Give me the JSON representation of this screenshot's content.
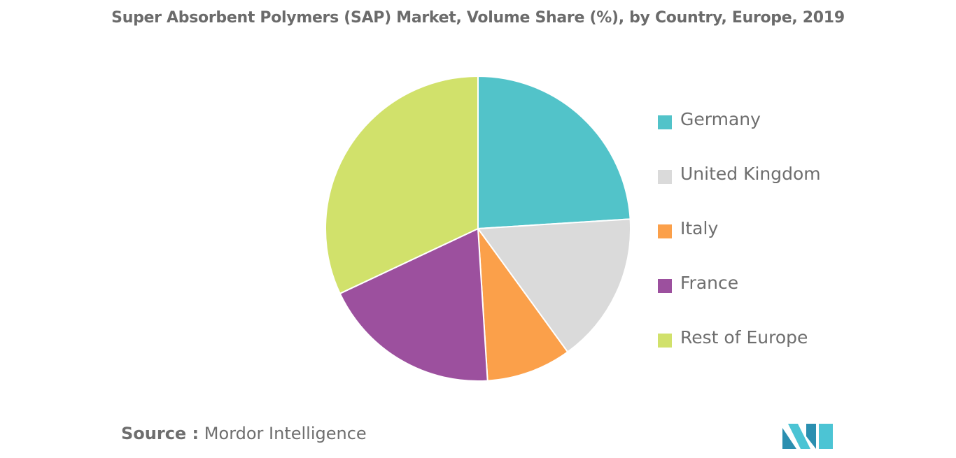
{
  "chart_data": {
    "type": "pie",
    "title": "Super Absorbent Polymers (SAP) Market, Volume Share (%), by Country, Europe, 2019",
    "categories": [
      "Germany",
      "United Kingdom",
      "Italy",
      "France",
      "Rest of Europe"
    ],
    "values": [
      24,
      16,
      9,
      19,
      32
    ],
    "colors": [
      "#52c3c9",
      "#dadada",
      "#fba04a",
      "#9c509e",
      "#d1e16b"
    ],
    "start_angle_deg": 0,
    "direction": "clockwise",
    "legend_position": "right"
  },
  "source": {
    "key": "Source :",
    "value": "Mordor Intelligence"
  },
  "logo": {
    "colors": [
      "#2b8fb0",
      "#4cc4d4"
    ]
  }
}
